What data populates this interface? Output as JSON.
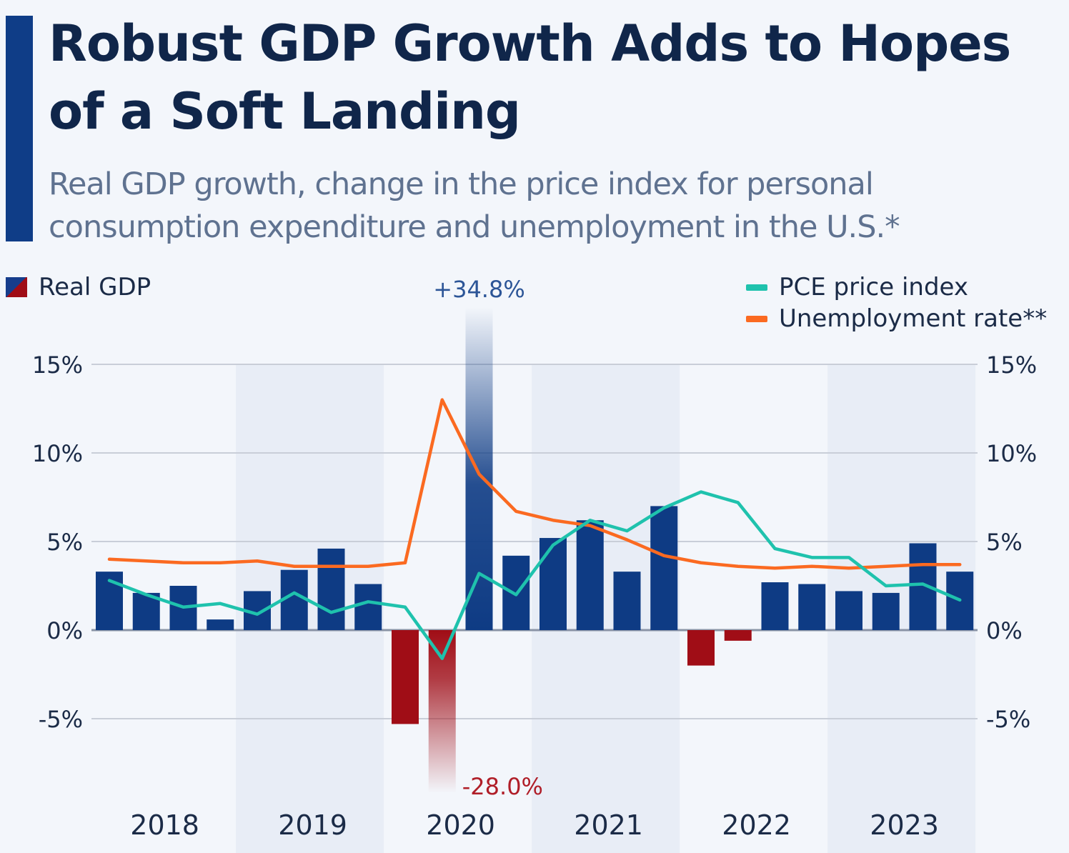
{
  "header": {
    "title": "Robust GDP Growth Adds to Hopes of a Soft Landing",
    "subtitle": "Real GDP growth, change in the price index for personal consumption expenditure and unemployment in the U.S.*"
  },
  "legend": {
    "gdp": "Real GDP",
    "pce": "PCE price index",
    "unemployment": "Unemployment rate**"
  },
  "colors": {
    "positive_bar": "#0e3b84",
    "negative_bar": "#a00d16",
    "pce_line": "#1fc2ad",
    "unemployment_line": "#fb6a21",
    "accent": "#0f3d87",
    "text_dark": "#10264a"
  },
  "chart_data": {
    "type": "bar",
    "title": "Robust GDP Growth Adds to Hopes of a Soft Landing",
    "subtitle": "Real GDP growth, change in the price index for personal consumption expenditure and unemployment in the U.S.*",
    "xlabel": "",
    "ylabel": "",
    "ylim": [
      -10,
      17
    ],
    "yticks": [
      15,
      10,
      5,
      0,
      -5
    ],
    "ytick_labels": [
      "15%",
      "10%",
      "5%",
      "0%",
      "-5%"
    ],
    "year_labels": [
      "2018",
      "2019",
      "2020",
      "2021",
      "2022",
      "2023"
    ],
    "categories": [
      "2018 Q1",
      "2018 Q2",
      "2018 Q3",
      "2018 Q4",
      "2019 Q1",
      "2019 Q2",
      "2019 Q3",
      "2019 Q4",
      "2020 Q1",
      "2020 Q2",
      "2020 Q3",
      "2020 Q4",
      "2021 Q1",
      "2021 Q2",
      "2021 Q3",
      "2021 Q4",
      "2022 Q1",
      "2022 Q2",
      "2022 Q3",
      "2022 Q4",
      "2023 Q1",
      "2023 Q2",
      "2023 Q3",
      "2023 Q4"
    ],
    "grid": true,
    "legend_position": "top",
    "series": [
      {
        "name": "Real GDP",
        "type": "bar",
        "values": [
          3.3,
          2.1,
          2.5,
          0.6,
          2.2,
          3.4,
          4.6,
          2.6,
          -5.3,
          -28.0,
          34.8,
          4.2,
          5.2,
          6.2,
          3.3,
          7.0,
          -2.0,
          -0.6,
          2.7,
          2.6,
          2.2,
          2.1,
          4.9,
          3.3
        ]
      },
      {
        "name": "PCE price index",
        "type": "line",
        "values": [
          2.8,
          2.0,
          1.3,
          1.5,
          0.9,
          2.1,
          1.0,
          1.6,
          1.3,
          -1.6,
          3.2,
          2.0,
          4.8,
          6.2,
          5.6,
          6.9,
          7.8,
          7.2,
          4.6,
          4.1,
          4.1,
          2.5,
          2.6,
          1.7
        ]
      },
      {
        "name": "Unemployment rate**",
        "type": "line",
        "values": [
          4.0,
          3.9,
          3.8,
          3.8,
          3.9,
          3.6,
          3.6,
          3.6,
          3.8,
          13.0,
          8.8,
          6.7,
          6.2,
          5.9,
          5.1,
          4.2,
          3.8,
          3.6,
          3.5,
          3.6,
          3.5,
          3.6,
          3.7,
          3.7
        ]
      }
    ],
    "annotations": [
      {
        "text": "+34.8%",
        "category": "2020 Q3",
        "color": "#2c5597"
      },
      {
        "text": "-28.0%",
        "category": "2020 Q2",
        "color": "#b01e28"
      }
    ]
  }
}
